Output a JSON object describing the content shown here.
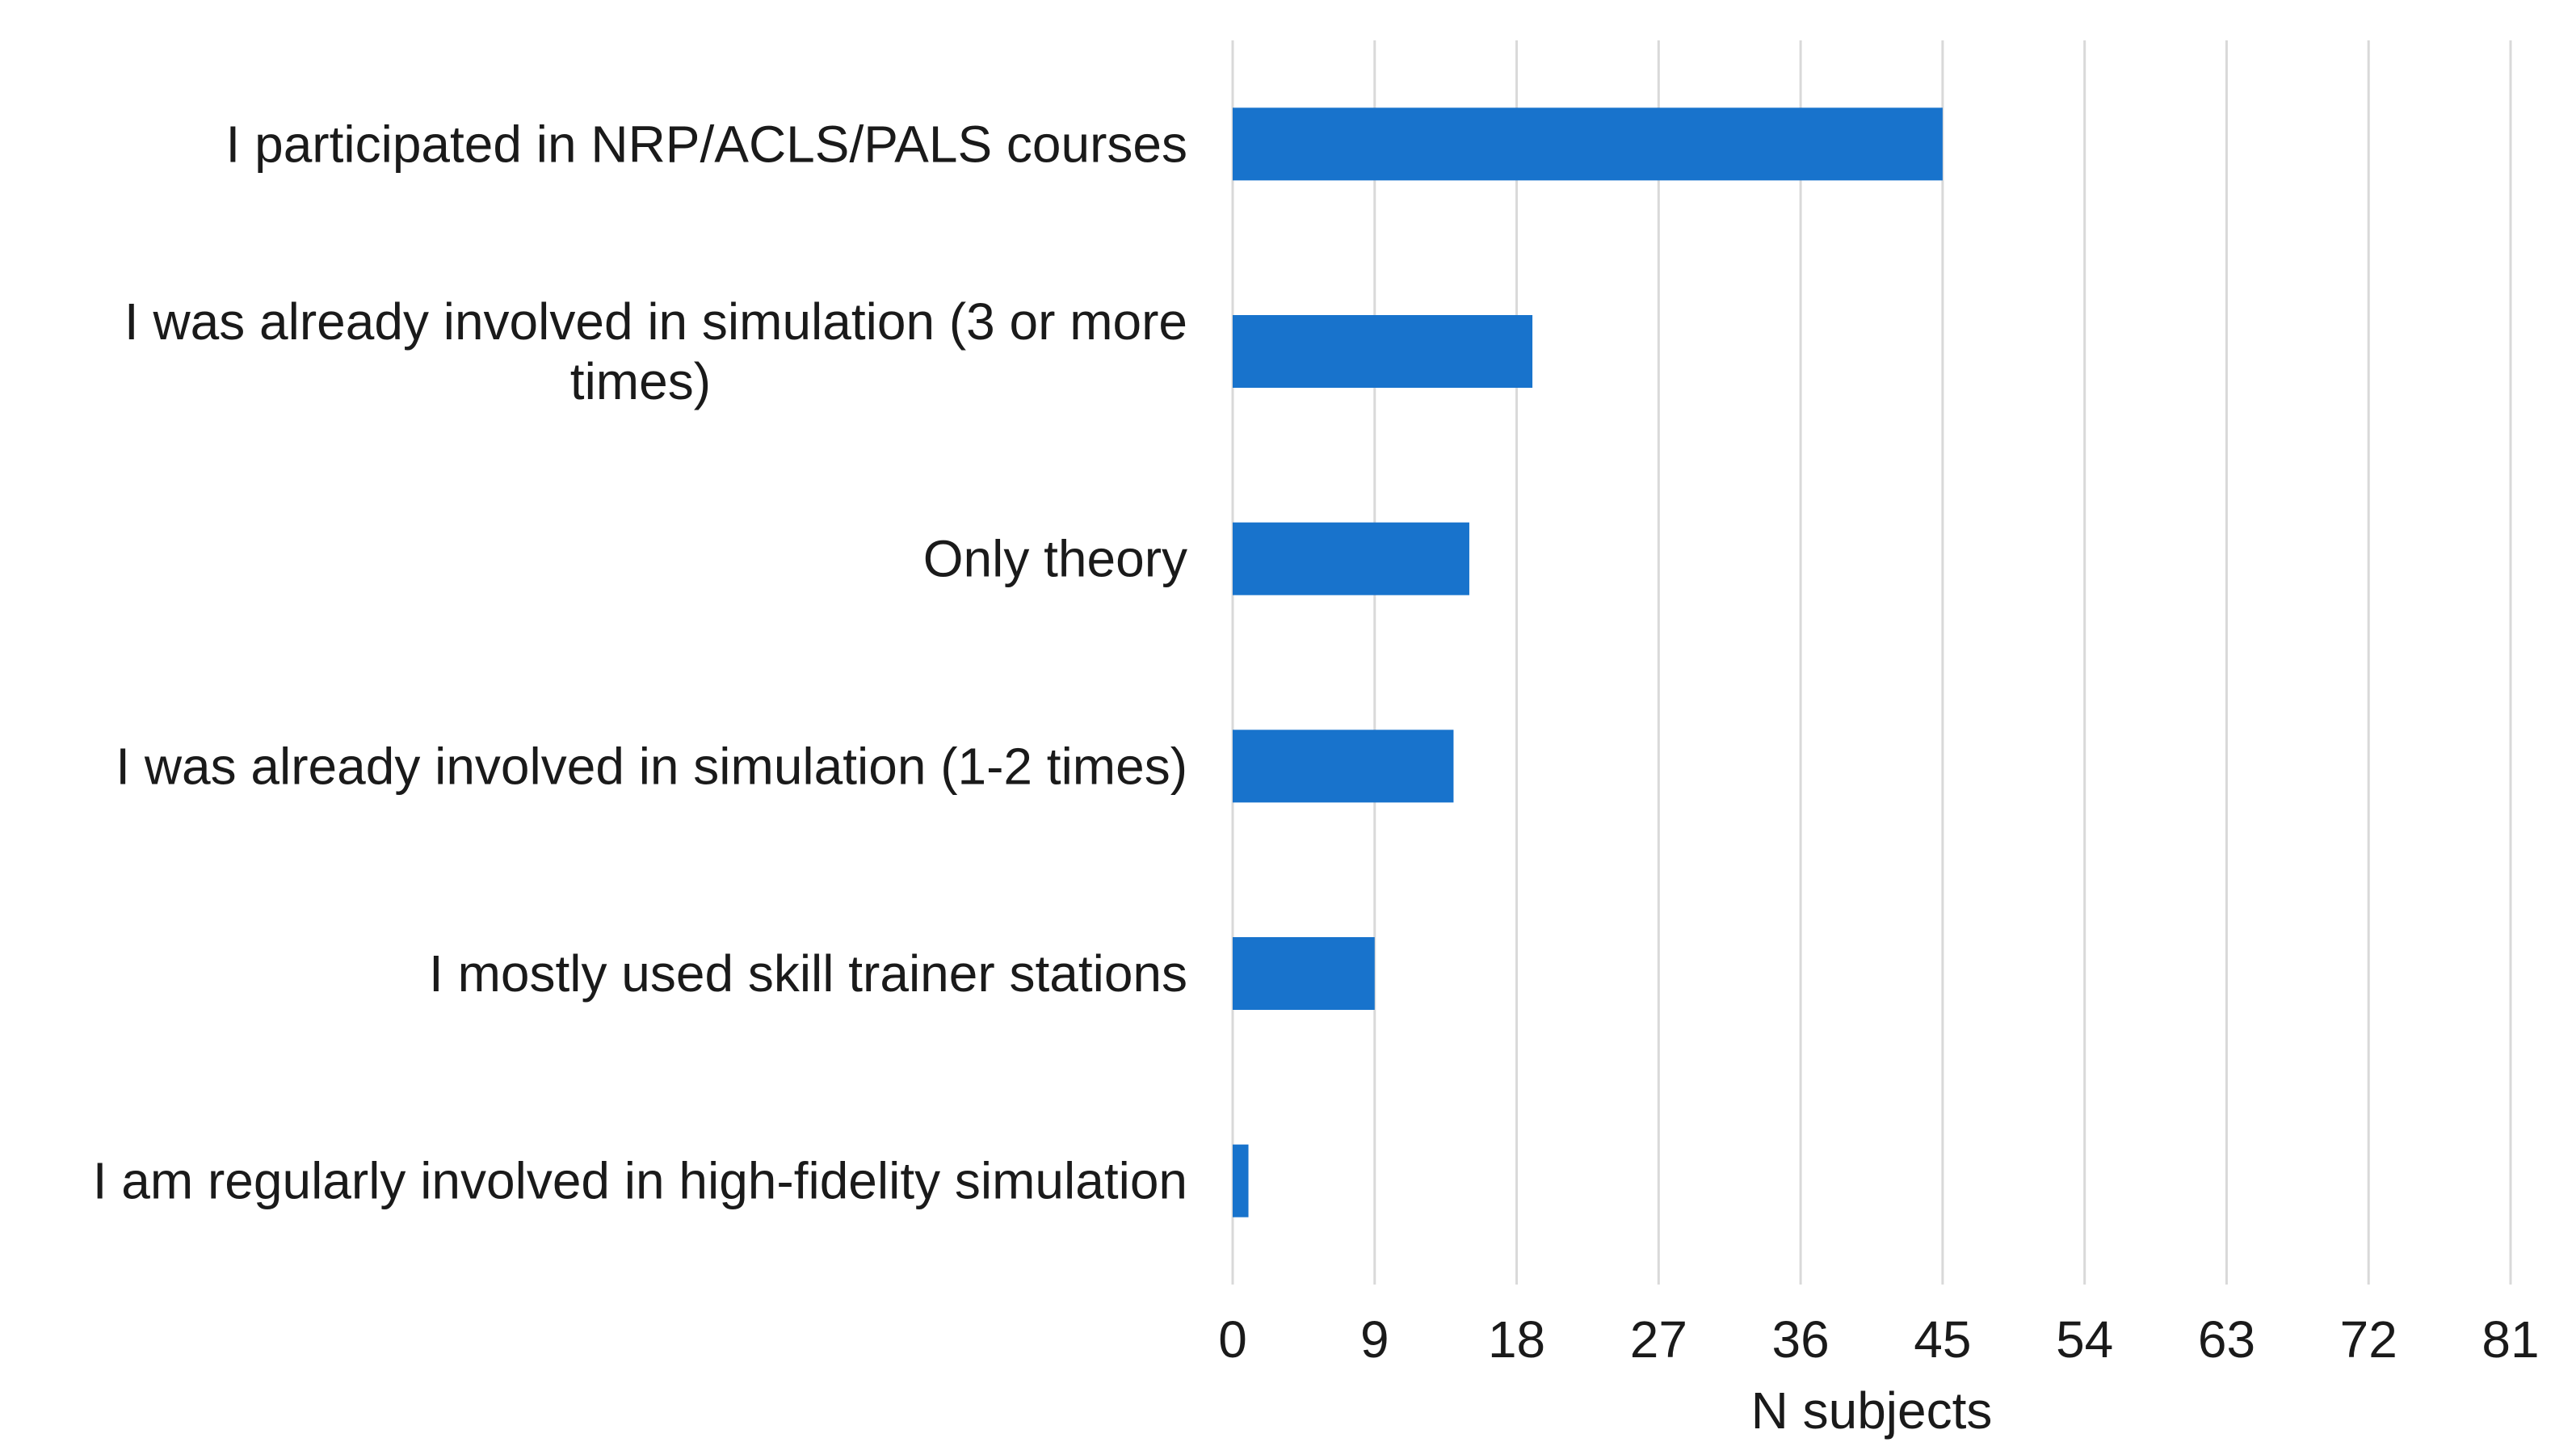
{
  "chart_data": {
    "type": "bar",
    "orientation": "horizontal",
    "title": "",
    "xlabel": "N subjects",
    "ylabel": "",
    "categories": [
      "I participated in NRP/ACLS/PALS courses",
      "I was already involved in simulation (3 or more times)",
      "Only theory",
      "I was already involved in simulation (1-2 times)",
      "I mostly used skill trainer stations",
      "I am regularly involved in high-fidelity simulation"
    ],
    "category_display_lines": [
      [
        "I participated in NRP/ACLS/PALS courses"
      ],
      [
        "I was already involved in simulation (3 or more",
        "times)"
      ],
      [
        "Only theory"
      ],
      [
        "I was already involved in simulation (1-2 times)"
      ],
      [
        "I mostly used skill trainer stations"
      ],
      [
        "I am regularly involved in high-fidelity simulation"
      ]
    ],
    "values": [
      45,
      19,
      15,
      14,
      9,
      1
    ],
    "xlim": [
      0,
      81
    ],
    "xticks": [
      "0",
      "9",
      "18",
      "27",
      "36",
      "45",
      "54",
      "63",
      "72",
      "81"
    ],
    "grid": "vertical",
    "legend": "none",
    "bar_color": "#1873cc",
    "grid_color": "#d9d9d9"
  }
}
